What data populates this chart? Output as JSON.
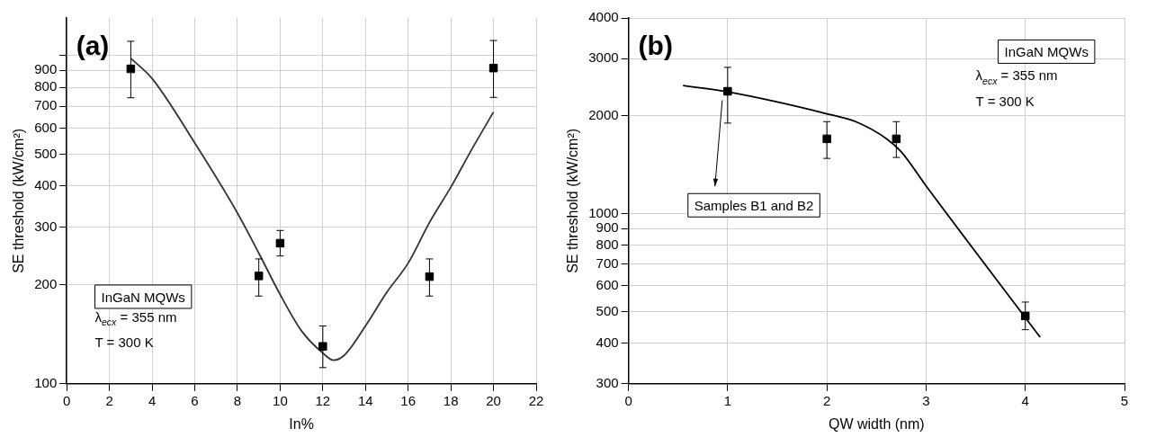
{
  "chart_data": [
    {
      "type": "scatter",
      "xlabel": "In%",
      "ylabel": "SE threshold (kW/cm²)",
      "log": "y",
      "grid": true,
      "legend": false,
      "xlim": [
        0,
        22
      ],
      "xticks": [
        0,
        2,
        4,
        6,
        8,
        10,
        12,
        14,
        16,
        18,
        20,
        22
      ],
      "ylim": [
        100,
        1300
      ],
      "yticks": [
        100,
        200,
        300,
        400,
        500,
        600,
        700,
        800,
        900,
        {
          "value": 1000,
          "label": null
        }
      ],
      "annotations": [
        "(a)",
        "InGaN MQWs",
        "λ$_{ecx}$ = 355 nm",
        "T = 300 K"
      ],
      "series": [
        {
          "marker": "square",
          "color": "#000000",
          "x": [
            3,
            9,
            10,
            12,
            17,
            20
          ],
          "values": [
            910,
            213,
            268,
            130,
            212,
            915
          ],
          "errors": [
            [
              743,
              1104
            ],
            [
              185,
              240
            ],
            [
              245,
              293
            ],
            [
              112,
              150
            ],
            [
              185,
              240
            ],
            [
              745,
              1110
            ]
          ]
        },
        {
          "type": "line",
          "marker": "none",
          "color": "#333333",
          "x": [
            3,
            4,
            6,
            8,
            9,
            10,
            11,
            12,
            12.5,
            13,
            14,
            15,
            16,
            17,
            18,
            19,
            20
          ],
          "values": [
            980,
            850,
            541,
            331,
            250,
            187,
            145,
            124,
            118,
            122,
            150,
            190,
            233,
            310,
            397,
            520,
            672
          ]
        }
      ]
    },
    {
      "type": "scatter",
      "xlabel": "QW width (nm)",
      "ylabel": "SE threshold (kW/cm²)",
      "log": "y",
      "grid": true,
      "legend": false,
      "xlim": [
        0,
        5
      ],
      "xticks": [
        0,
        1,
        2,
        3,
        4,
        5
      ],
      "ylim": [
        300,
        4000
      ],
      "yticks": [
        300,
        400,
        500,
        600,
        700,
        800,
        900,
        1000,
        2000,
        3000,
        4000
      ],
      "annotations": [
        "(b)",
        "InGaN MQWs",
        "λ$_{ecx}$ = 355 nm",
        "T = 300 K",
        "Samples B1 and B2"
      ],
      "series": [
        {
          "marker": "square",
          "color": "#000000",
          "x": [
            1,
            2,
            2.7,
            4
          ],
          "values": [
            2380,
            1700,
            1700,
            485
          ],
          "errors": [
            [
              1900,
              2820
            ],
            [
              1480,
              1920
            ],
            [
              1490,
              1920
            ],
            [
              440,
              535
            ]
          ]
        },
        {
          "type": "line",
          "marker": "none",
          "color": "#000000",
          "x": [
            0.55,
            1,
            2,
            2.3,
            2.6,
            2.75,
            3,
            4.15
          ],
          "values": [
            2478,
            2370,
            2030,
            1914,
            1702,
            1550,
            1218,
            417
          ]
        }
      ]
    }
  ]
}
